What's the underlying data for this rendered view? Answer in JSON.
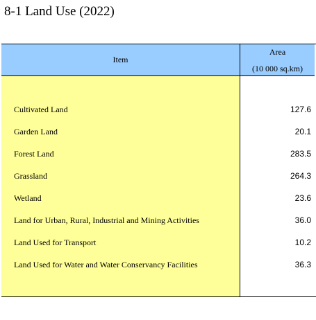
{
  "title": "8-1  Land Use (2022)",
  "header": {
    "item": "Item",
    "area_line1": "Area",
    "area_line2": "(10 000 sq.km)"
  },
  "rows": [
    {
      "label": "Cultivated Land",
      "value": "127.6"
    },
    {
      "label": "Garden Land",
      "value": "20.1"
    },
    {
      "label": "Forest Land",
      "value": "283.5"
    },
    {
      "label": "Grassland",
      "value": "264.3"
    },
    {
      "label": "Wetland",
      "value": "23.6"
    },
    {
      "label": "Land for Urban, Rural, Industrial and Mining Activities",
      "value": "36.0"
    },
    {
      "label": "Land Used for Transport",
      "value": "10.2"
    },
    {
      "label": "Land Used for Water and Water Conservancy Facilities",
      "value": "36.3"
    }
  ],
  "colors": {
    "header_bg": "#99ccff",
    "item_col_bg": "#ffff99"
  }
}
